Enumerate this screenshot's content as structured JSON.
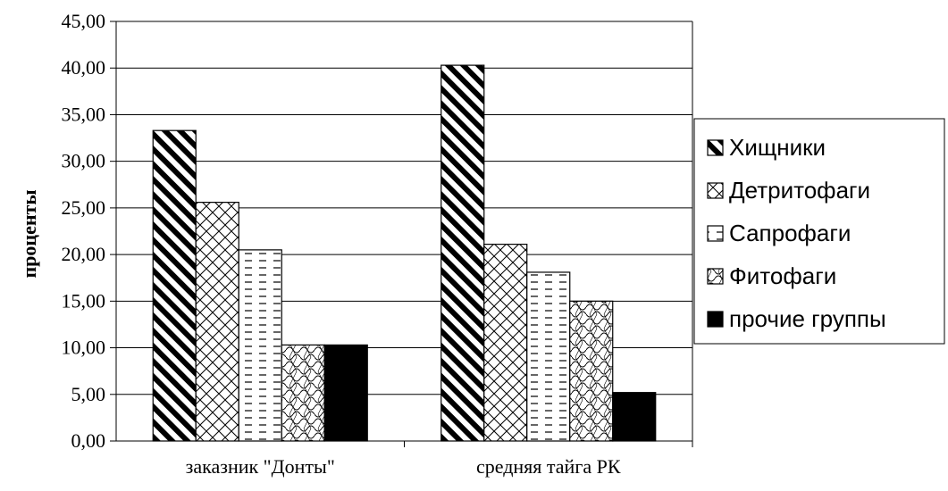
{
  "chart_data": {
    "type": "bar",
    "title": "",
    "xlabel": "",
    "ylabel": "проценты",
    "ylim": [
      0,
      45
    ],
    "ytick_step": 5,
    "ytick_labels": [
      "0,00",
      "5,00",
      "10,00",
      "15,00",
      "20,00",
      "25,00",
      "30,00",
      "35,00",
      "40,00",
      "45,00"
    ],
    "grid": true,
    "legend_position": "right",
    "categories": [
      "заказник \"Донты\"",
      "средняя тайга РК"
    ],
    "series": [
      {
        "name": "Хищники",
        "values": [
          33.3,
          40.3
        ],
        "pattern": "diagonal-stripes"
      },
      {
        "name": "Детритофаги",
        "values": [
          25.6,
          21.1
        ],
        "pattern": "crosshatch"
      },
      {
        "name": "Сапрофаги",
        "values": [
          20.5,
          18.1
        ],
        "pattern": "dashes"
      },
      {
        "name": "Фитофаги",
        "values": [
          10.3,
          15.0
        ],
        "pattern": "weave"
      },
      {
        "name": "прочие группы",
        "values": [
          10.3,
          5.2
        ],
        "pattern": "solid"
      }
    ]
  }
}
